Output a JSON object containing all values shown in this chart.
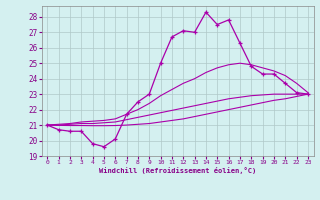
{
  "xlabel": "Windchill (Refroidissement éolien,°C)",
  "xlim": [
    -0.5,
    23.5
  ],
  "ylim": [
    19,
    28.7
  ],
  "yticks": [
    19,
    20,
    21,
    22,
    23,
    24,
    25,
    26,
    27,
    28
  ],
  "xticks": [
    0,
    1,
    2,
    3,
    4,
    5,
    6,
    7,
    8,
    9,
    10,
    11,
    12,
    13,
    14,
    15,
    16,
    17,
    18,
    19,
    20,
    21,
    22,
    23
  ],
  "background_color": "#d4f0f0",
  "grid_color": "#b0c8c8",
  "line_color": "#aa00aa",
  "s1x": [
    0,
    1,
    2,
    3,
    4,
    5,
    6,
    7,
    8,
    9,
    10,
    11,
    12,
    13,
    14,
    15,
    16,
    17,
    18,
    19,
    20,
    21,
    22,
    23
  ],
  "s1y": [
    21.0,
    20.7,
    20.6,
    20.6,
    19.8,
    19.6,
    20.1,
    21.7,
    22.5,
    23.0,
    25.0,
    26.7,
    27.1,
    27.0,
    28.3,
    27.5,
    27.8,
    26.3,
    24.8,
    24.3,
    24.3,
    23.7,
    23.1,
    23.0
  ],
  "s2x": [
    0,
    1,
    2,
    3,
    4,
    5,
    6,
    7,
    8,
    9,
    10,
    11,
    12,
    13,
    14,
    15,
    16,
    17,
    18,
    19,
    20,
    21,
    22,
    23
  ],
  "s2y": [
    21.0,
    21.05,
    21.1,
    21.2,
    21.25,
    21.3,
    21.4,
    21.7,
    22.0,
    22.4,
    22.9,
    23.3,
    23.7,
    24.0,
    24.4,
    24.7,
    24.9,
    25.0,
    24.9,
    24.7,
    24.5,
    24.2,
    23.7,
    23.1
  ],
  "s3x": [
    0,
    1,
    2,
    3,
    4,
    5,
    6,
    7,
    8,
    9,
    10,
    11,
    12,
    13,
    14,
    15,
    16,
    17,
    18,
    19,
    20,
    21,
    22,
    23
  ],
  "s3y": [
    21.0,
    21.0,
    21.05,
    21.1,
    21.1,
    21.15,
    21.2,
    21.35,
    21.5,
    21.65,
    21.8,
    21.95,
    22.1,
    22.25,
    22.4,
    22.55,
    22.7,
    22.8,
    22.9,
    22.95,
    23.0,
    23.0,
    23.0,
    23.0
  ],
  "s4x": [
    0,
    1,
    2,
    3,
    4,
    5,
    6,
    7,
    8,
    9,
    10,
    11,
    12,
    13,
    14,
    15,
    16,
    17,
    18,
    19,
    20,
    21,
    22,
    23
  ],
  "s4y": [
    21.0,
    20.98,
    20.97,
    20.97,
    20.96,
    20.96,
    20.97,
    21.0,
    21.05,
    21.1,
    21.2,
    21.3,
    21.4,
    21.55,
    21.7,
    21.85,
    22.0,
    22.15,
    22.3,
    22.45,
    22.6,
    22.7,
    22.85,
    23.0
  ]
}
